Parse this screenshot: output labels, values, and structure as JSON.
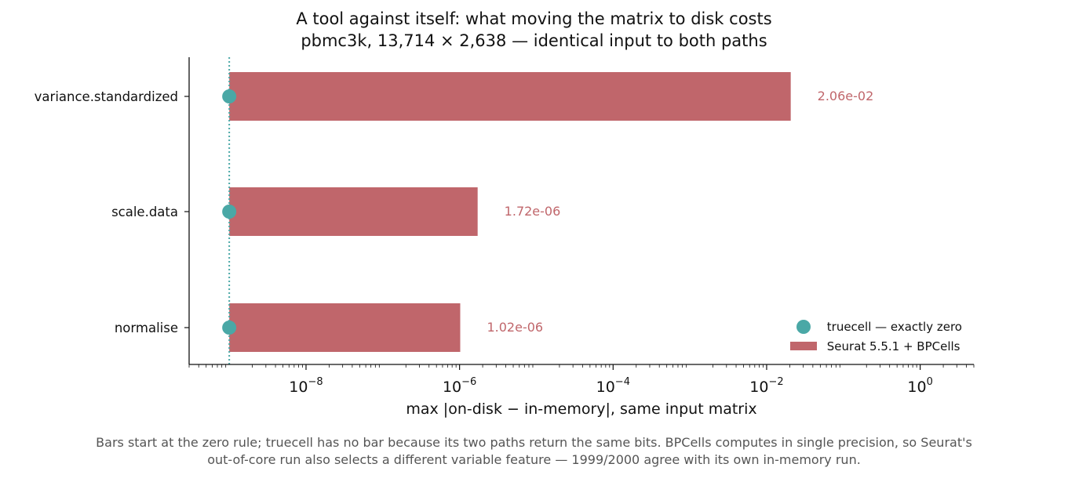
{
  "colors": {
    "truecell": "#4aa8a6",
    "seurat": "#c0666b",
    "caption": "#555555",
    "axis": "#111111"
  },
  "chart_data": {
    "type": "bar",
    "orientation": "horizontal",
    "title": "A tool against itself: what moving the matrix to disk costs",
    "subtitle": "pbmc3k, 13,714 × 2,638 — identical input to both paths",
    "xlabel": "max |on-disk − in-memory|, same input matrix",
    "ylabel": "",
    "x_scale": "log",
    "xlim": [
      3e-10,
      5
    ],
    "x_ticks": [
      1e-08,
      1e-06,
      0.0001,
      0.01,
      1
    ],
    "x_tick_labels": [
      {
        "base": "10",
        "exp": "−8"
      },
      {
        "base": "10",
        "exp": "−6"
      },
      {
        "base": "10",
        "exp": "−4"
      },
      {
        "base": "10",
        "exp": "−2"
      },
      {
        "base": "10",
        "exp": "0"
      }
    ],
    "zero_rule": 1e-09,
    "categories": [
      "variance.standardized",
      "scale.data",
      "normalise"
    ],
    "series": [
      {
        "name": "truecell — exactly zero",
        "kind": "marker",
        "values": [
          0,
          0,
          0
        ]
      },
      {
        "name": "Seurat 5.5.1 + BPCells",
        "kind": "bar",
        "values": [
          0.0206,
          1.72e-06,
          1.02e-06
        ]
      }
    ],
    "data_labels": [
      "2.06e-02",
      "1.72e-06",
      "1.02e-06"
    ],
    "legend_position": "lower-right",
    "grid": false
  },
  "caption": {
    "line1": "Bars start at the zero rule; truecell has no bar because its two paths return the same bits. BPCells computes in single precision, so Seurat's",
    "line2": "out-of-core run also selects a different variable feature — 1999/2000 agree with its own in-memory run."
  }
}
